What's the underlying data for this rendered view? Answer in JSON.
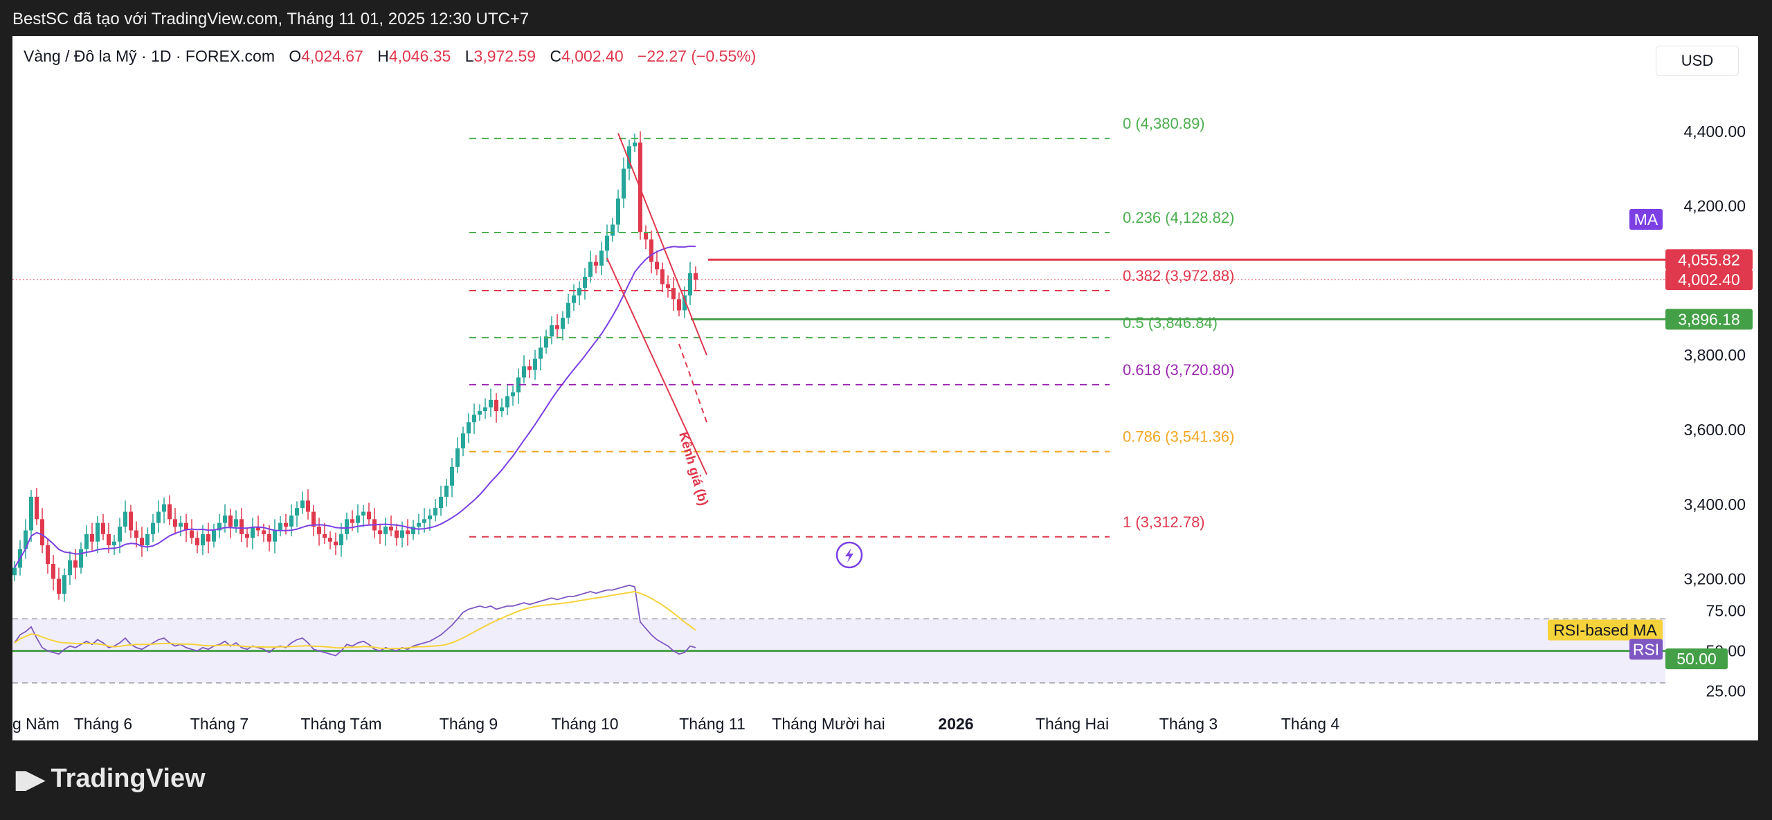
{
  "top_bar": {
    "text": "BestSC đã tạo với TradingView.com, Tháng 11 01, 2025 12:30 UTC+7"
  },
  "header": {
    "symbol": "Vàng / Đô la Mỹ · 1D · FOREX.com",
    "o_label": "O",
    "o_value": "4,024.67",
    "h_label": "H",
    "h_value": "4,046.35",
    "l_label": "L",
    "l_value": "3,972.59",
    "c_label": "C",
    "c_value": "4,002.40",
    "change": "−22.27 (−0.55%)"
  },
  "currency_button": "USD",
  "footer": {
    "logo_text": "TradingView"
  },
  "colors": {
    "up": "#26a69a",
    "down": "#e0384d",
    "ma": "#7b3fe4",
    "rsi": "#7e57c2",
    "rsi_ma": "#f5d33a"
  },
  "chart_data": {
    "type": "candlestick",
    "symbol": "XAUUSD",
    "interval": "1D",
    "ylim": [
      3060,
      4600
    ],
    "y_ticks": [
      {
        "value": 4400,
        "label": "4,400.00"
      },
      {
        "value": 4200,
        "label": "4,200.00"
      },
      {
        "value": 3800,
        "label": "3,800.00"
      },
      {
        "value": 3600,
        "label": "3,600.00"
      },
      {
        "value": 3400,
        "label": "3,400.00"
      },
      {
        "value": 3200,
        "label": "3,200.00"
      }
    ],
    "x_labels": [
      {
        "index": 0,
        "label": "g Năm"
      },
      {
        "index": 16,
        "label": "Tháng 6"
      },
      {
        "index": 37,
        "label": "Tháng 7"
      },
      {
        "index": 59,
        "label": "Tháng Tám"
      },
      {
        "index": 82,
        "label": "Tháng 9"
      },
      {
        "index": 103,
        "label": "Tháng 10"
      },
      {
        "index": 126,
        "label": "Tháng 11"
      },
      {
        "index": 147,
        "label": "Tháng Mười hai"
      },
      {
        "index": 170,
        "label": "2026",
        "bold": true
      },
      {
        "index": 191,
        "label": "Tháng Hai"
      },
      {
        "index": 212,
        "label": "Tháng 3"
      },
      {
        "index": 234,
        "label": "Tháng 4"
      }
    ],
    "closes": [
      3230,
      3280,
      3330,
      3420,
      3360,
      3290,
      3240,
      3200,
      3160,
      3210,
      3250,
      3230,
      3280,
      3320,
      3300,
      3350,
      3320,
      3290,
      3300,
      3340,
      3380,
      3330,
      3310,
      3290,
      3320,
      3350,
      3380,
      3400,
      3360,
      3340,
      3350,
      3330,
      3310,
      3290,
      3320,
      3300,
      3330,
      3350,
      3370,
      3340,
      3360,
      3320,
      3310,
      3340,
      3330,
      3320,
      3300,
      3330,
      3350,
      3340,
      3370,
      3390,
      3410,
      3380,
      3340,
      3320,
      3310,
      3300,
      3290,
      3320,
      3360,
      3350,
      3370,
      3380,
      3360,
      3330,
      3320,
      3340,
      3330,
      3310,
      3330,
      3320,
      3340,
      3350,
      3360,
      3370,
      3390,
      3420,
      3450,
      3500,
      3550,
      3590,
      3620,
      3640,
      3650,
      3660,
      3680,
      3650,
      3660,
      3690,
      3700,
      3740,
      3770,
      3760,
      3790,
      3820,
      3850,
      3880,
      3870,
      3900,
      3940,
      3960,
      3980,
      4010,
      4050,
      4040,
      4080,
      4120,
      4150,
      4220,
      4300,
      4360,
      4370,
      4130,
      4110,
      4050,
      4030,
      3990,
      3980,
      3950,
      3920,
      3960,
      4020,
      4002
    ],
    "series": [
      {
        "name": "MA",
        "value": 4055.82,
        "label": "4,055.82"
      },
      {
        "name": "Close",
        "value": 4002.4,
        "label": "4,002.40"
      }
    ],
    "horizontal_lines": [
      {
        "value": 4055.82,
        "label": "4,055.82",
        "color": "#e0384d"
      },
      {
        "value": 3896.18,
        "label": "3,896.18",
        "color": "#43a047"
      }
    ],
    "fibonacci": [
      {
        "ratio": "0",
        "value": 4380.89,
        "label": "0 (4,380.89)",
        "color": "#4caf50"
      },
      {
        "ratio": "0.236",
        "value": 4128.82,
        "label": "0.236 (4,128.82)",
        "color": "#4caf50"
      },
      {
        "ratio": "0.382",
        "value": 3972.88,
        "label": "0.382 (3,972.88)",
        "color": "#e0384d"
      },
      {
        "ratio": "0.5",
        "value": 3846.84,
        "label": "0.5 (3,846.84)",
        "color": "#4caf50"
      },
      {
        "ratio": "0.618",
        "value": 3720.8,
        "label": "0.618 (3,720.80)",
        "color": "#9c27b0"
      },
      {
        "ratio": "0.786",
        "value": 3541.36,
        "label": "0.786 (3,541.36)",
        "color": "#f5a623"
      },
      {
        "ratio": "1",
        "value": 3312.78,
        "label": "1 (3,312.78)",
        "color": "#e0384d"
      }
    ],
    "annotations": [
      {
        "text": "Kênh giá (b)",
        "color": "#e0384d"
      }
    ],
    "rsi": {
      "ylim": [
        20,
        90
      ],
      "levels": [
        70,
        50,
        30
      ],
      "y_ticks": [
        {
          "value": 75,
          "label": "75.00"
        },
        {
          "value": 50,
          "label": "50.00"
        },
        {
          "value": 25,
          "label": "25.00"
        }
      ],
      "labels": {
        "rsi_ma": "RSI-based MA",
        "rsi": "RSI",
        "value_50": "50.00"
      },
      "values": [
        55,
        60,
        62,
        65,
        58,
        52,
        50,
        49,
        48,
        51,
        53,
        52,
        54,
        56,
        54,
        57,
        55,
        52,
        53,
        55,
        58,
        54,
        52,
        51,
        53,
        55,
        57,
        58,
        55,
        53,
        54,
        52,
        51,
        50,
        52,
        51,
        53,
        54,
        56,
        53,
        55,
        52,
        51,
        53,
        52,
        51,
        49,
        52,
        53,
        52,
        55,
        57,
        58,
        55,
        51,
        50,
        49,
        48,
        47,
        50,
        54,
        53,
        55,
        56,
        54,
        51,
        50,
        52,
        51,
        50,
        52,
        51,
        53,
        54,
        55,
        56,
        58,
        60,
        63,
        66,
        70,
        74,
        76,
        77,
        78,
        77,
        78,
        76,
        77,
        78,
        78,
        79,
        80,
        79,
        80,
        81,
        82,
        83,
        82,
        83,
        84,
        84,
        85,
        86,
        87,
        86,
        87,
        88,
        88,
        89,
        90,
        91,
        90,
        68,
        64,
        60,
        57,
        55,
        53,
        50,
        48,
        49,
        53,
        52
      ]
    }
  }
}
